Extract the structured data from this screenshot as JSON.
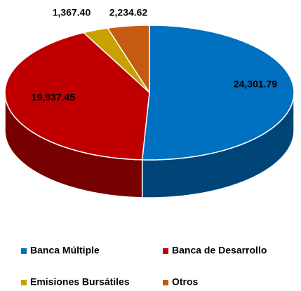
{
  "chart_data": {
    "type": "pie",
    "categories": [
      "Banca Múltiple",
      "Banca de Desarrollo",
      "Emisiones Bursátiles",
      "Otros"
    ],
    "values": [
      24301.79,
      19937.45,
      1367.4,
      2234.62
    ],
    "value_labels": [
      "24,301.79",
      "19,937.45",
      "1,367.40",
      "2,234.62"
    ],
    "colors": [
      "#0070c0",
      "#c00000",
      "#c9a000",
      "#c55a11"
    ],
    "legend": "bottom"
  }
}
